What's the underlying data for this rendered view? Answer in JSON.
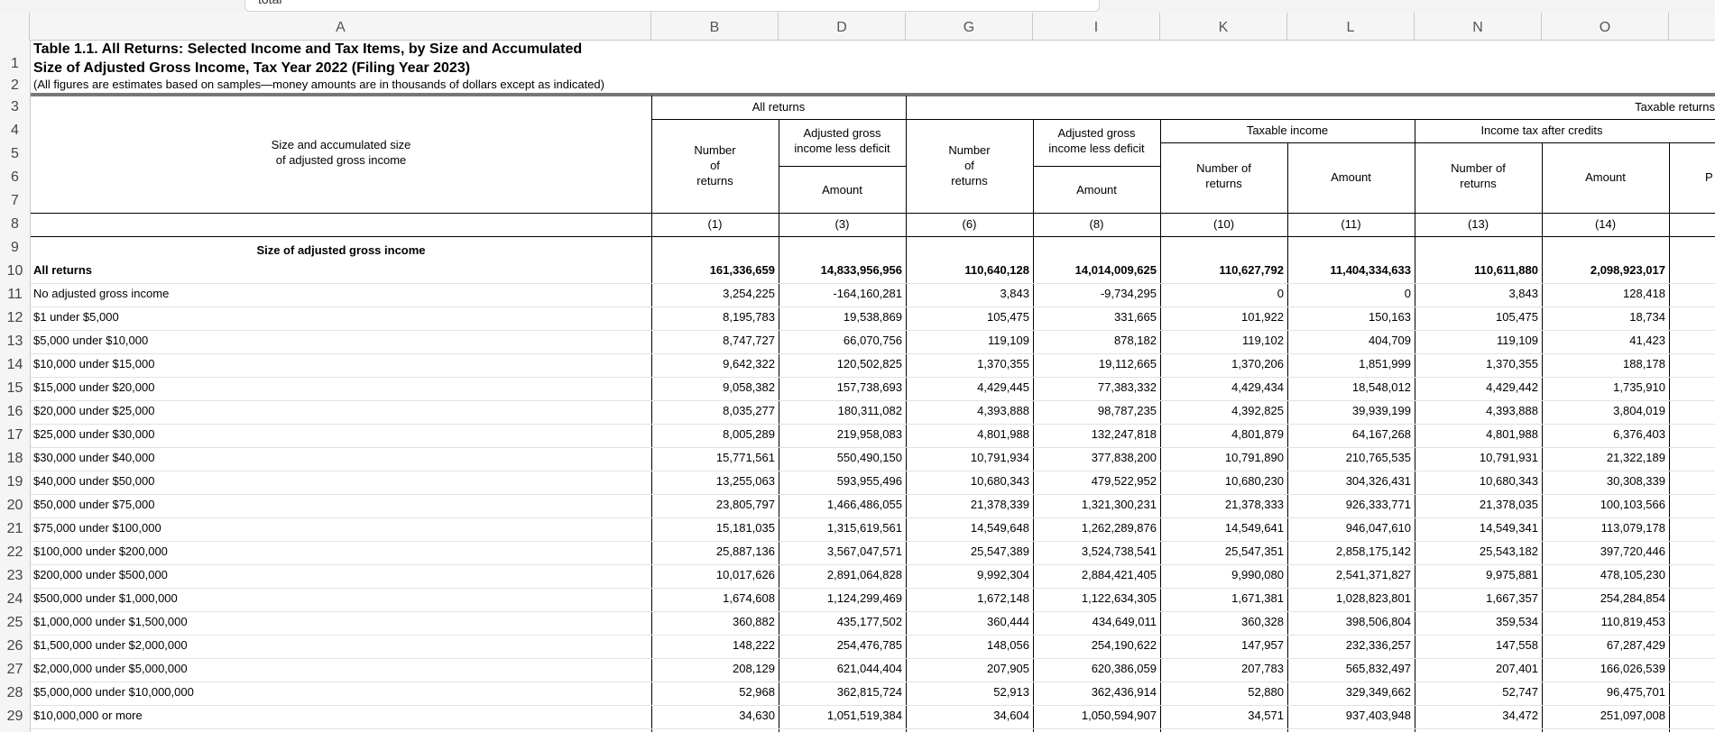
{
  "formula_bar": {
    "text": "total"
  },
  "column_letters": [
    "A",
    "B",
    "D",
    "G",
    "I",
    "K",
    "L",
    "N",
    "O"
  ],
  "row_numbers": [
    "1",
    "2",
    "3",
    "4",
    "5",
    "6",
    "7",
    "8",
    "9",
    "10",
    "11",
    "12",
    "13",
    "14",
    "15",
    "16",
    "17",
    "18",
    "19",
    "20",
    "21",
    "22",
    "23",
    "24",
    "25",
    "26",
    "27",
    "28",
    "29"
  ],
  "title": {
    "line1": "Table 1.1.  All Returns: Selected Income and Tax Items, by Size and Accumulated",
    "line2": "Size of Adjusted Gross Income, Tax Year 2022 (Filing Year 2023)",
    "note": "(All figures are estimates based on samples—money amounts are in thousands of dollars except as indicated)"
  },
  "headers": {
    "stub_line1": "Size and accumulated size",
    "stub_line2": "of adjusted gross income",
    "all_returns": "All returns",
    "taxable_returns": "Taxable returns",
    "num_l1": "Number",
    "num_l2": "of",
    "num_l3": "returns",
    "agi_l1": "Adjusted gross",
    "agi_l2": "income less deficit",
    "amount": "Amount",
    "taxable_income": "Taxable income",
    "income_tax": "Income tax after credits",
    "numof_l1": "Number of",
    "numof_l2": "returns",
    "cut_p": "P",
    "col_nums": [
      "(1)",
      "(3)",
      "(6)",
      "(8)",
      "(10)",
      "(11)",
      "(13)",
      "(14)"
    ]
  },
  "section_label": "Size of adjusted gross income",
  "rows": [
    {
      "label": "All returns",
      "bold": true,
      "vals": [
        "161,336,659",
        "14,833,956,956",
        "110,640,128",
        "14,014,009,625",
        "110,627,792",
        "11,404,334,633",
        "110,611,880",
        "2,098,923,017"
      ]
    },
    {
      "label": "No adjusted gross income",
      "vals": [
        "3,254,225",
        "-164,160,281",
        "3,843",
        "-9,734,295",
        "0",
        "0",
        "3,843",
        "128,418"
      ]
    },
    {
      "label": "$1 under $5,000",
      "vals": [
        "8,195,783",
        "19,538,869",
        "105,475",
        "331,665",
        "101,922",
        "150,163",
        "105,475",
        "18,734"
      ]
    },
    {
      "label": "$5,000 under $10,000",
      "vals": [
        "8,747,727",
        "66,070,756",
        "119,109",
        "878,182",
        "119,102",
        "404,709",
        "119,109",
        "41,423"
      ]
    },
    {
      "label": "$10,000 under $15,000",
      "vals": [
        "9,642,322",
        "120,502,825",
        "1,370,355",
        "19,112,665",
        "1,370,206",
        "1,851,999",
        "1,370,355",
        "188,178"
      ]
    },
    {
      "label": "$15,000 under $20,000",
      "vals": [
        "9,058,382",
        "157,738,693",
        "4,429,445",
        "77,383,332",
        "4,429,434",
        "18,548,012",
        "4,429,442",
        "1,735,910"
      ]
    },
    {
      "label": "$20,000 under $25,000",
      "vals": [
        "8,035,277",
        "180,311,082",
        "4,393,888",
        "98,787,235",
        "4,392,825",
        "39,939,199",
        "4,393,888",
        "3,804,019"
      ]
    },
    {
      "label": "$25,000 under $30,000",
      "vals": [
        "8,005,289",
        "219,958,083",
        "4,801,988",
        "132,247,818",
        "4,801,879",
        "64,167,268",
        "4,801,988",
        "6,376,403"
      ]
    },
    {
      "label": "$30,000 under $40,000",
      "vals": [
        "15,771,561",
        "550,490,150",
        "10,791,934",
        "377,838,200",
        "10,791,890",
        "210,765,535",
        "10,791,931",
        "21,322,189"
      ]
    },
    {
      "label": "$40,000 under $50,000",
      "vals": [
        "13,255,063",
        "593,955,496",
        "10,680,343",
        "479,522,952",
        "10,680,230",
        "304,326,431",
        "10,680,343",
        "30,308,339"
      ]
    },
    {
      "label": "$50,000 under $75,000",
      "vals": [
        "23,805,797",
        "1,466,486,055",
        "21,378,339",
        "1,321,300,231",
        "21,378,333",
        "926,333,771",
        "21,378,035",
        "100,103,566"
      ]
    },
    {
      "label": "$75,000 under $100,000",
      "vals": [
        "15,181,035",
        "1,315,619,561",
        "14,549,648",
        "1,262,289,876",
        "14,549,641",
        "946,047,610",
        "14,549,341",
        "113,079,178"
      ]
    },
    {
      "label": "$100,000 under $200,000",
      "vals": [
        "25,887,136",
        "3,567,047,571",
        "25,547,389",
        "3,524,738,541",
        "25,547,351",
        "2,858,175,142",
        "25,543,182",
        "397,720,446"
      ]
    },
    {
      "label": "$200,000 under $500,000",
      "vals": [
        "10,017,626",
        "2,891,064,828",
        "9,992,304",
        "2,884,421,405",
        "9,990,080",
        "2,541,371,827",
        "9,975,881",
        "478,105,230"
      ]
    },
    {
      "label": "$500,000 under $1,000,000",
      "vals": [
        "1,674,608",
        "1,124,299,469",
        "1,672,148",
        "1,122,634,305",
        "1,671,381",
        "1,028,823,801",
        "1,667,357",
        "254,284,854"
      ]
    },
    {
      "label": "$1,000,000 under $1,500,000",
      "vals": [
        "360,882",
        "435,177,502",
        "360,444",
        "434,649,011",
        "360,328",
        "398,506,804",
        "359,534",
        "110,819,453"
      ]
    },
    {
      "label": "$1,500,000 under $2,000,000",
      "vals": [
        "148,222",
        "254,476,785",
        "148,056",
        "254,190,622",
        "147,957",
        "232,336,257",
        "147,558",
        "67,287,429"
      ]
    },
    {
      "label": "$2,000,000 under $5,000,000",
      "vals": [
        "208,129",
        "621,044,404",
        "207,905",
        "620,386,059",
        "207,783",
        "565,832,497",
        "207,401",
        "166,026,539"
      ]
    },
    {
      "label": "$5,000,000 under $10,000,000",
      "vals": [
        "52,968",
        "362,815,724",
        "52,913",
        "362,436,914",
        "52,880",
        "329,349,662",
        "52,747",
        "96,475,701"
      ]
    },
    {
      "label": "$10,000,000 or more",
      "vals": [
        "34,630",
        "1,051,519,384",
        "34,604",
        "1,050,594,907",
        "34,571",
        "937,403,948",
        "34,472",
        "251,097,008"
      ]
    }
  ]
}
